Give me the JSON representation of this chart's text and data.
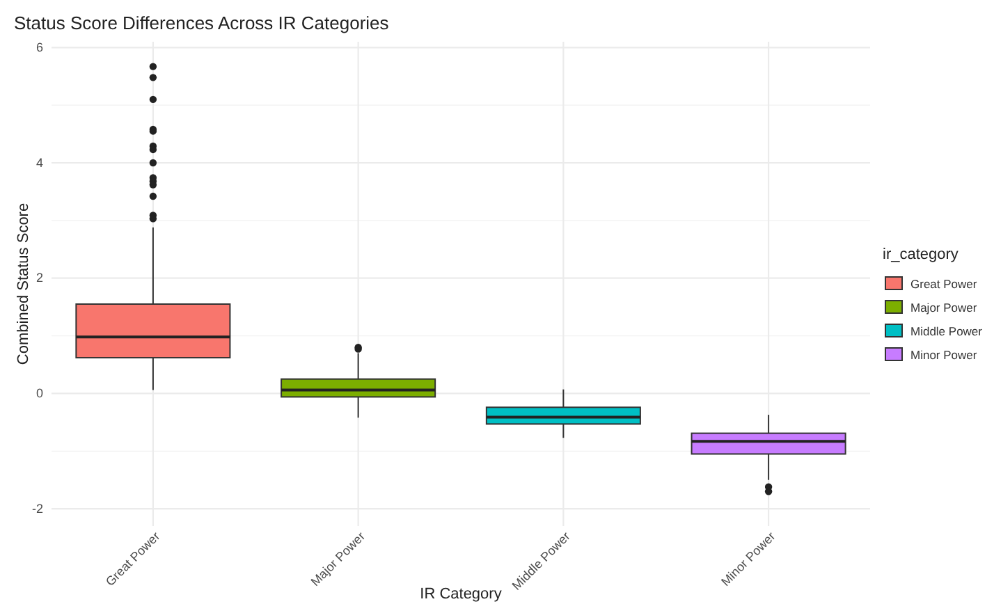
{
  "chart_data": {
    "type": "box",
    "title": "Status Score Differences Across IR Categories",
    "xlabel": "IR Category",
    "ylabel": "Combined Status Score",
    "legend_title": "ir_category",
    "legend": "right",
    "grid": true,
    "categories": [
      "Great Power",
      "Major Power",
      "Middle Power",
      "Minor Power"
    ],
    "ylim": [
      -2.3,
      6.1
    ],
    "yticks": [
      -2,
      0,
      2,
      4,
      6
    ],
    "series": [
      {
        "name": "Great Power",
        "color": "#f8766d",
        "boxes": [
          {
            "low": 0.06,
            "q1": 0.62,
            "median": 0.98,
            "q3": 1.55,
            "high": 2.88,
            "outliers": [
              5.67,
              5.48,
              5.1,
              4.58,
              4.55,
              4.29,
              4.23,
              4.0,
              3.74,
              3.68,
              3.62,
              3.42,
              3.09,
              3.03
            ]
          },
          null,
          null,
          null
        ]
      },
      {
        "name": "Major Power",
        "color": "#7cae00",
        "boxes": [
          null,
          {
            "low": -0.42,
            "q1": -0.06,
            "median": 0.06,
            "q3": 0.25,
            "high": 0.7,
            "outliers": [
              0.8,
              0.77
            ]
          },
          null,
          null
        ]
      },
      {
        "name": "Middle Power",
        "color": "#00bfc4",
        "boxes": [
          null,
          null,
          {
            "low": -0.77,
            "q1": -0.53,
            "median": -0.41,
            "q3": -0.24,
            "high": 0.07
          },
          null
        ]
      },
      {
        "name": "Minor Power",
        "color": "#c77cff",
        "boxes": [
          null,
          null,
          null,
          {
            "low": -1.5,
            "q1": -1.05,
            "median": -0.83,
            "q3": -0.69,
            "high": -0.37,
            "outliers": [
              -1.62,
              -1.7
            ]
          }
        ]
      }
    ]
  }
}
